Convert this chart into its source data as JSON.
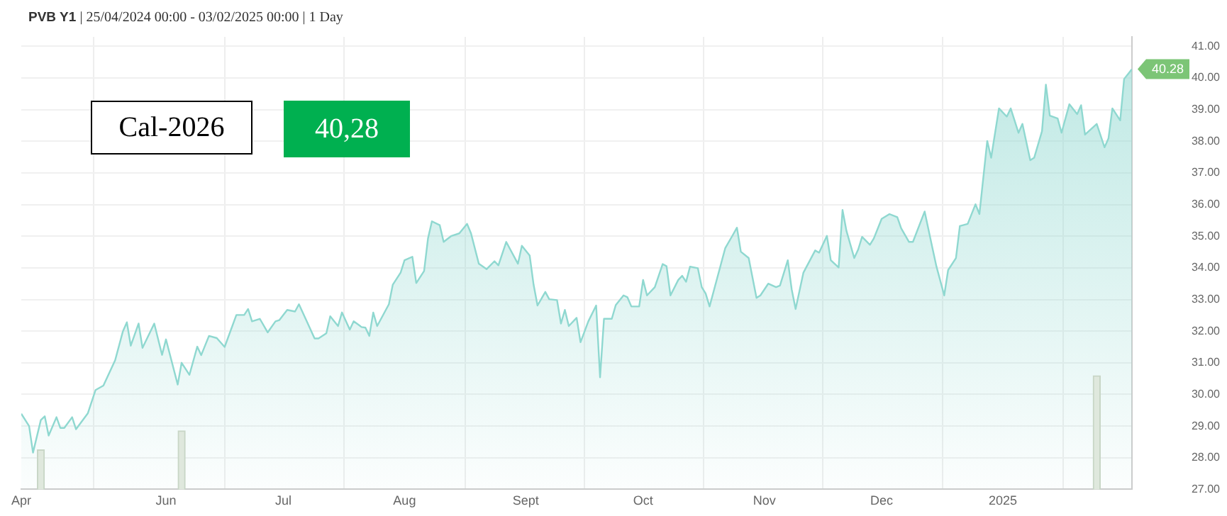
{
  "chart_data": {
    "type": "area",
    "title": "PVB Y1 | 25/04/2024 00:00 - 03/02/2025 00:00 | 1 Day",
    "annotations": [
      "Cal-2026",
      "40,28",
      {
        "text": "40.28",
        "x": "2025-02-03",
        "y": 40.28
      }
    ],
    "xlim": [
      "2024-04-25",
      "2025-02-03"
    ],
    "xticks": [
      {
        "value": "2024-04-25",
        "label": "Apr"
      },
      {
        "value": "2024-06-01",
        "label": "Jun"
      },
      {
        "value": "2024-07-01",
        "label": "Jul"
      },
      {
        "value": "2024-08-01",
        "label": "Aug"
      },
      {
        "value": "2024-09-01",
        "label": "Sept"
      },
      {
        "value": "2024-10-01",
        "label": "Oct"
      },
      {
        "value": "2024-11-01",
        "label": "Nov"
      },
      {
        "value": "2024-12-01",
        "label": "Dec"
      },
      {
        "value": "2025-01-01",
        "label": "2025"
      }
    ],
    "ylim": [
      27,
      41.3
    ],
    "yticks": [
      {
        "value": 27,
        "label": "27.00"
      },
      {
        "value": 28,
        "label": "28.00"
      },
      {
        "value": 29,
        "label": "29.00"
      },
      {
        "value": 30,
        "label": "30.00"
      },
      {
        "value": 31,
        "label": "31.00"
      },
      {
        "value": 32,
        "label": "32.00"
      },
      {
        "value": 33,
        "label": "33.00"
      },
      {
        "value": 34,
        "label": "34.00"
      },
      {
        "value": 35,
        "label": "35.00"
      },
      {
        "value": 36,
        "label": "36.00"
      },
      {
        "value": 37,
        "label": "37.00"
      },
      {
        "value": 38,
        "label": "38.00"
      },
      {
        "value": 39,
        "label": "39.00"
      },
      {
        "value": 40,
        "label": "40.00"
      },
      {
        "value": 41,
        "label": "41.00"
      }
    ],
    "grid": true,
    "series": [
      {
        "color": "#8fd8d0",
        "x": [
          "2024-04-25",
          "2024-04-27",
          "2024-04-28",
          "2024-04-30",
          "2024-05-01",
          "2024-05-02",
          "2024-05-04",
          "2024-05-05",
          "2024-05-06",
          "2024-05-08",
          "2024-05-09",
          "2024-05-12",
          "2024-05-14",
          "2024-05-16",
          "2024-05-19",
          "2024-05-21",
          "2024-05-22",
          "2024-05-23",
          "2024-05-25",
          "2024-05-26",
          "2024-05-29",
          "2024-05-31",
          "2024-06-01",
          "2024-06-04",
          "2024-06-05",
          "2024-06-07",
          "2024-06-09",
          "2024-06-10",
          "2024-06-12",
          "2024-06-14",
          "2024-06-16",
          "2024-06-19",
          "2024-06-21",
          "2024-06-22",
          "2024-06-23",
          "2024-06-25",
          "2024-06-27",
          "2024-06-29",
          "2024-06-30",
          "2024-07-02",
          "2024-07-04",
          "2024-07-05",
          "2024-07-07",
          "2024-07-09",
          "2024-07-10",
          "2024-07-12",
          "2024-07-13",
          "2024-07-15",
          "2024-07-16",
          "2024-07-18",
          "2024-07-19",
          "2024-07-21",
          "2024-07-22",
          "2024-07-23",
          "2024-07-24",
          "2024-07-25",
          "2024-07-28",
          "2024-07-29",
          "2024-07-31",
          "2024-08-01",
          "2024-08-03",
          "2024-08-04",
          "2024-08-06",
          "2024-08-07",
          "2024-08-08",
          "2024-08-10",
          "2024-08-11",
          "2024-08-13",
          "2024-08-15",
          "2024-08-17",
          "2024-08-18",
          "2024-08-20",
          "2024-08-22",
          "2024-08-24",
          "2024-08-25",
          "2024-08-27",
          "2024-08-30",
          "2024-08-31",
          "2024-09-02",
          "2024-09-03",
          "2024-09-04",
          "2024-09-06",
          "2024-09-07",
          "2024-09-09",
          "2024-09-10",
          "2024-09-11",
          "2024-09-12",
          "2024-09-14",
          "2024-09-15",
          "2024-09-17",
          "2024-09-19",
          "2024-09-20",
          "2024-09-21",
          "2024-09-23",
          "2024-09-24",
          "2024-09-26",
          "2024-09-27",
          "2024-09-28",
          "2024-09-30",
          "2024-10-01",
          "2024-10-02",
          "2024-10-04",
          "2024-10-06",
          "2024-10-07",
          "2024-10-08",
          "2024-10-10",
          "2024-10-11",
          "2024-10-12",
          "2024-10-13",
          "2024-10-15",
          "2024-10-16",
          "2024-10-17",
          "2024-10-18",
          "2024-10-20",
          "2024-10-22",
          "2024-10-24",
          "2024-10-25",
          "2024-10-26",
          "2024-10-28",
          "2024-10-30",
          "2024-10-31",
          "2024-11-02",
          "2024-11-04",
          "2024-11-05",
          "2024-11-07",
          "2024-11-08",
          "2024-11-09",
          "2024-11-11",
          "2024-11-14",
          "2024-11-15",
          "2024-11-17",
          "2024-11-18",
          "2024-11-20",
          "2024-11-21",
          "2024-11-22",
          "2024-11-24",
          "2024-11-25",
          "2024-11-26",
          "2024-11-28",
          "2024-11-29",
          "2024-12-01",
          "2024-12-03",
          "2024-12-05",
          "2024-12-06",
          "2024-12-08",
          "2024-12-09",
          "2024-12-12",
          "2024-12-14",
          "2024-12-15",
          "2024-12-17",
          "2024-12-18",
          "2024-12-20",
          "2024-12-21",
          "2024-12-23",
          "2024-12-25",
          "2024-12-26",
          "2024-12-28",
          "2024-12-29",
          "2024-12-31",
          "2025-01-02",
          "2025-01-03",
          "2025-01-05",
          "2025-01-06",
          "2025-01-08",
          "2025-01-09",
          "2025-01-11",
          "2025-01-12",
          "2025-01-13",
          "2025-01-15",
          "2025-01-16",
          "2025-01-18",
          "2025-01-20",
          "2025-01-21",
          "2025-01-22",
          "2025-01-25",
          "2025-01-27",
          "2025-01-28",
          "2025-01-29",
          "2025-01-31",
          "2025-02-01",
          "2025-02-03"
        ],
        "values": [
          29.39,
          29.0,
          28.16,
          29.19,
          29.31,
          28.7,
          29.28,
          28.94,
          28.94,
          29.28,
          28.9,
          29.4,
          30.14,
          30.28,
          31.08,
          32.0,
          32.28,
          31.54,
          32.24,
          31.47,
          32.24,
          31.25,
          31.74,
          30.31,
          31.0,
          30.62,
          31.51,
          31.24,
          31.85,
          31.78,
          31.5,
          32.51,
          32.51,
          32.7,
          32.31,
          32.39,
          31.96,
          32.31,
          32.35,
          32.67,
          32.62,
          32.85,
          32.31,
          31.77,
          31.77,
          31.93,
          32.47,
          32.16,
          32.59,
          32.05,
          32.31,
          32.13,
          32.11,
          31.85,
          32.59,
          32.16,
          32.85,
          33.47,
          33.85,
          34.24,
          34.35,
          33.52,
          33.9,
          34.93,
          35.47,
          35.35,
          34.82,
          35.01,
          35.09,
          35.39,
          35.09,
          34.13,
          33.96,
          34.21,
          34.08,
          34.82,
          34.13,
          34.7,
          34.39,
          33.47,
          32.81,
          33.24,
          33.01,
          32.98,
          32.24,
          32.67,
          32.16,
          32.42,
          31.65,
          32.31,
          32.81,
          30.54,
          32.39,
          32.39,
          32.82,
          33.13,
          33.07,
          32.78,
          32.78,
          33.62,
          33.13,
          33.39,
          34.12,
          34.05,
          33.13,
          33.62,
          33.75,
          33.56,
          34.04,
          33.99,
          33.39,
          33.19,
          32.78,
          33.7,
          34.62,
          35.05,
          35.27,
          34.51,
          34.31,
          33.05,
          33.13,
          33.5,
          33.39,
          33.44,
          34.24,
          33.32,
          32.7,
          33.85,
          34.55,
          34.48,
          35.01,
          34.24,
          34.01,
          35.83,
          35.17,
          34.31,
          34.58,
          34.98,
          34.73,
          34.93,
          35.55,
          35.7,
          35.6,
          35.25,
          34.82,
          34.82,
          35.78,
          34.62,
          34.05,
          33.13,
          33.93,
          34.31,
          35.32,
          35.39,
          36.01,
          35.7,
          38.01,
          37.48,
          39.04,
          38.78,
          39.04,
          38.27,
          38.55,
          37.4,
          37.48,
          38.32,
          39.79,
          38.81,
          38.72,
          38.27,
          39.17,
          38.86,
          39.14,
          38.21,
          38.55,
          37.81,
          38.09,
          39.04,
          38.66,
          39.97,
          40.28
        ]
      },
      {
        "type": "bar",
        "color": "#dfe8dd",
        "x": [
          "2024-04-30",
          "2024-06-05",
          "2025-01-25"
        ],
        "values": [
          28.25,
          28.85,
          30.59
        ]
      }
    ]
  }
}
